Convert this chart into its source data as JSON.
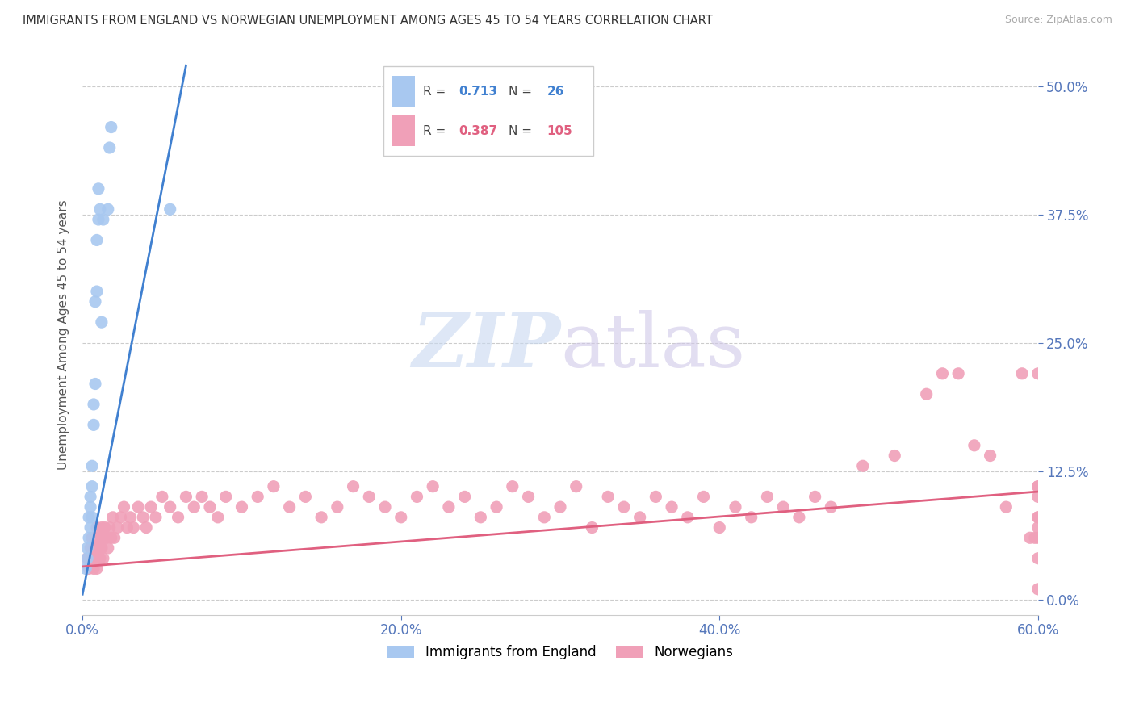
{
  "title": "IMMIGRANTS FROM ENGLAND VS NORWEGIAN UNEMPLOYMENT AMONG AGES 45 TO 54 YEARS CORRELATION CHART",
  "source": "Source: ZipAtlas.com",
  "ylabel": "Unemployment Among Ages 45 to 54 years",
  "blue_R": 0.713,
  "blue_N": 26,
  "pink_R": 0.387,
  "pink_N": 105,
  "blue_color": "#a8c8f0",
  "pink_color": "#f0a0b8",
  "blue_line_color": "#4080d0",
  "pink_line_color": "#e06080",
  "legend_label_blue": "Immigrants from England",
  "legend_label_pink": "Norwegians",
  "watermark_zip": "ZIP",
  "watermark_atlas": "atlas",
  "background_color": "#ffffff",
  "xlim": [
    0.0,
    0.6
  ],
  "ylim": [
    -0.015,
    0.53
  ],
  "xtick_vals": [
    0.0,
    0.2,
    0.4,
    0.6
  ],
  "xtick_labels": [
    "0.0%",
    "20.0%",
    "40.0%",
    "60.0%"
  ],
  "ytick_vals": [
    0.0,
    0.125,
    0.25,
    0.375,
    0.5
  ],
  "ytick_labels": [
    "0.0%",
    "12.5%",
    "25.0%",
    "37.5%",
    "50.0%"
  ],
  "blue_scatter_x": [
    0.002,
    0.003,
    0.003,
    0.004,
    0.004,
    0.005,
    0.005,
    0.005,
    0.006,
    0.006,
    0.006,
    0.007,
    0.007,
    0.008,
    0.008,
    0.009,
    0.009,
    0.01,
    0.01,
    0.011,
    0.012,
    0.013,
    0.016,
    0.017,
    0.018,
    0.055
  ],
  "blue_scatter_y": [
    0.03,
    0.04,
    0.05,
    0.06,
    0.08,
    0.07,
    0.09,
    0.1,
    0.08,
    0.11,
    0.13,
    0.17,
    0.19,
    0.21,
    0.29,
    0.3,
    0.35,
    0.37,
    0.4,
    0.38,
    0.27,
    0.37,
    0.38,
    0.44,
    0.46,
    0.38
  ],
  "pink_scatter_x": [
    0.003,
    0.004,
    0.005,
    0.006,
    0.006,
    0.007,
    0.007,
    0.008,
    0.008,
    0.009,
    0.009,
    0.01,
    0.01,
    0.011,
    0.011,
    0.012,
    0.012,
    0.013,
    0.013,
    0.014,
    0.015,
    0.016,
    0.017,
    0.018,
    0.019,
    0.02,
    0.022,
    0.024,
    0.026,
    0.028,
    0.03,
    0.032,
    0.035,
    0.038,
    0.04,
    0.043,
    0.046,
    0.05,
    0.055,
    0.06,
    0.065,
    0.07,
    0.075,
    0.08,
    0.085,
    0.09,
    0.1,
    0.11,
    0.12,
    0.13,
    0.14,
    0.15,
    0.16,
    0.17,
    0.18,
    0.19,
    0.2,
    0.21,
    0.22,
    0.23,
    0.24,
    0.25,
    0.26,
    0.27,
    0.28,
    0.29,
    0.3,
    0.31,
    0.32,
    0.33,
    0.34,
    0.35,
    0.36,
    0.37,
    0.38,
    0.39,
    0.4,
    0.41,
    0.42,
    0.43,
    0.44,
    0.45,
    0.46,
    0.47,
    0.49,
    0.51,
    0.53,
    0.54,
    0.55,
    0.56,
    0.57,
    0.58,
    0.59,
    0.595,
    0.598,
    0.6,
    0.6,
    0.6,
    0.6,
    0.6,
    0.6,
    0.6,
    0.6,
    0.6,
    0.6
  ],
  "pink_scatter_y": [
    0.04,
    0.03,
    0.05,
    0.04,
    0.06,
    0.03,
    0.05,
    0.04,
    0.06,
    0.03,
    0.07,
    0.04,
    0.05,
    0.06,
    0.04,
    0.07,
    0.05,
    0.06,
    0.04,
    0.07,
    0.06,
    0.05,
    0.07,
    0.06,
    0.08,
    0.06,
    0.07,
    0.08,
    0.09,
    0.07,
    0.08,
    0.07,
    0.09,
    0.08,
    0.07,
    0.09,
    0.08,
    0.1,
    0.09,
    0.08,
    0.1,
    0.09,
    0.1,
    0.09,
    0.08,
    0.1,
    0.09,
    0.1,
    0.11,
    0.09,
    0.1,
    0.08,
    0.09,
    0.11,
    0.1,
    0.09,
    0.08,
    0.1,
    0.11,
    0.09,
    0.1,
    0.08,
    0.09,
    0.11,
    0.1,
    0.08,
    0.09,
    0.11,
    0.07,
    0.1,
    0.09,
    0.08,
    0.1,
    0.09,
    0.08,
    0.1,
    0.07,
    0.09,
    0.08,
    0.1,
    0.09,
    0.08,
    0.1,
    0.09,
    0.13,
    0.14,
    0.2,
    0.22,
    0.22,
    0.15,
    0.14,
    0.09,
    0.22,
    0.06,
    0.06,
    0.22,
    0.11,
    0.08,
    0.04,
    0.01,
    0.08,
    0.06,
    0.07,
    0.1,
    0.11
  ],
  "blue_trend_x": [
    0.0,
    0.065
  ],
  "blue_trend_y": [
    0.005,
    0.52
  ],
  "pink_trend_x": [
    0.0,
    0.6
  ],
  "pink_trend_y": [
    0.032,
    0.105
  ]
}
